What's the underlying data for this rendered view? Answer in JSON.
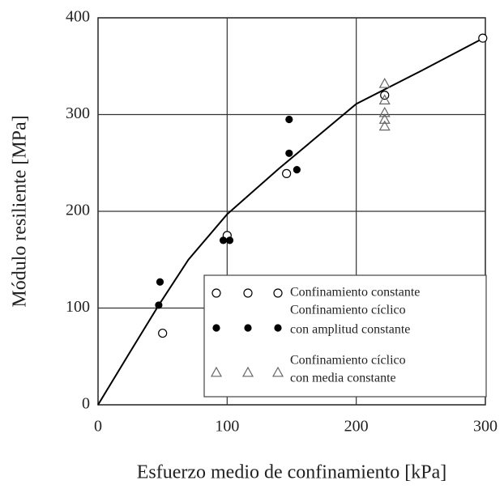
{
  "chart_data": {
    "type": "scatter",
    "x_label": "Esfuerzo medio de confinamiento [kPa]",
    "y_label": "Módulo resiliente [MPa]",
    "xlim": [
      0,
      300
    ],
    "ylim": [
      0,
      400
    ],
    "xticks": [
      0,
      100,
      200,
      300
    ],
    "yticks": [
      0,
      100,
      200,
      300,
      400
    ],
    "grid": true,
    "legend": "lower-right",
    "fit_line": {
      "color": "#000000",
      "x": [
        0,
        25,
        47,
        70,
        100,
        140,
        200,
        250,
        300
      ],
      "values": [
        0,
        55,
        103,
        150,
        197,
        244,
        311,
        345,
        380
      ]
    },
    "series": [
      {
        "name": "Confinamiento constante",
        "marker": "open-circle",
        "color": "#000000",
        "x": [
          50,
          100,
          146,
          222,
          298
        ],
        "values": [
          74,
          175,
          239,
          320,
          379
        ]
      },
      {
        "name": [
          "Confinamiento cíclico",
          "con amplitud constante"
        ],
        "marker": "filled-circle",
        "color": "#000000",
        "x": [
          48,
          47,
          97,
          102,
          148,
          148,
          154
        ],
        "values": [
          127,
          103,
          170,
          170,
          295,
          260,
          243
        ]
      },
      {
        "name": [
          "Confinamiento cíclico",
          "con media constante"
        ],
        "marker": "open-triangle",
        "color": "#666666",
        "x": [
          222,
          222,
          222,
          222,
          222
        ],
        "values": [
          332,
          315,
          302,
          295,
          288
        ]
      }
    ]
  }
}
